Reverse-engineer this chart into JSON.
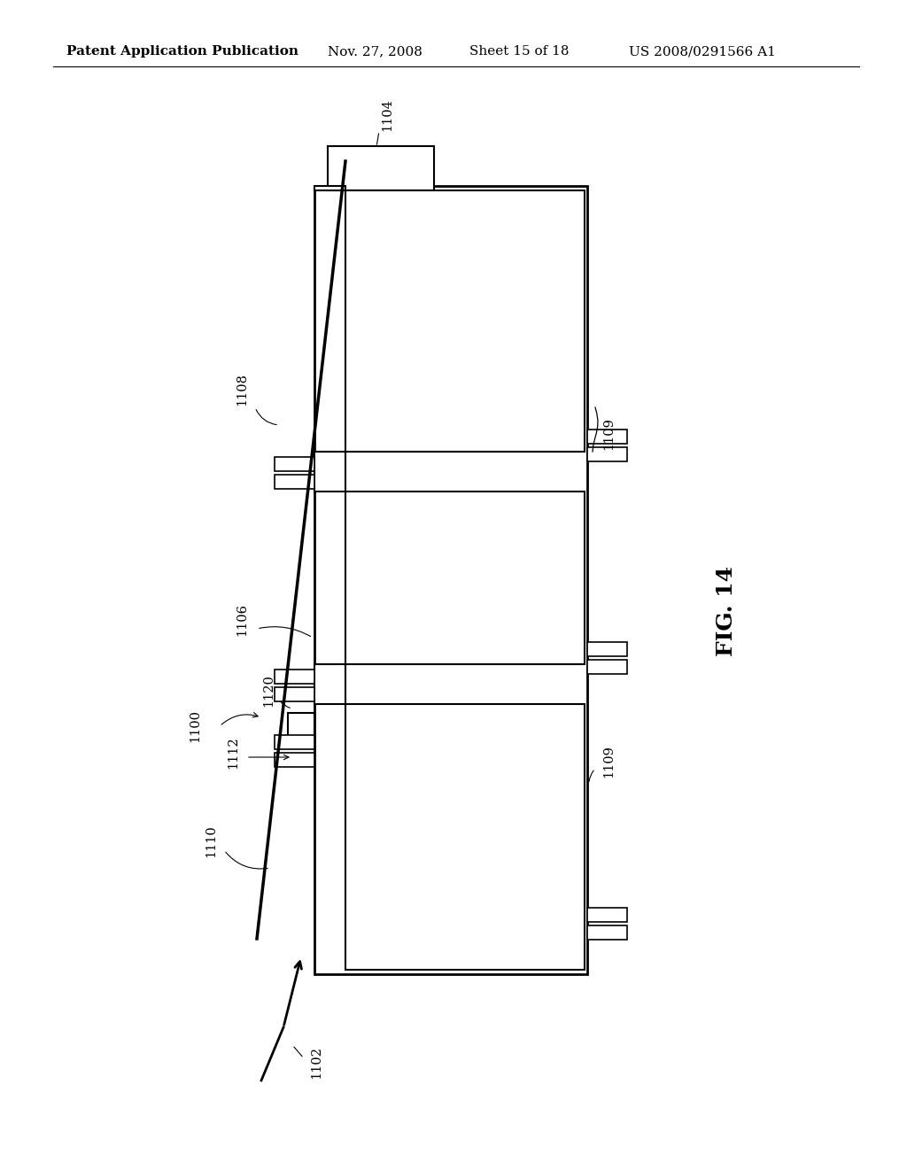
{
  "title": "Patent Application Publication",
  "date": "Nov. 27, 2008",
  "sheet": "Sheet 15 of 18",
  "patent_no": "US 2008/0291566 A1",
  "fig_label": "FIG. 14",
  "background_color": "#ffffff",
  "line_color": "#000000",
  "header_fontsize": 11,
  "fig_label_fontsize": 18,
  "label_fontsize": 10.5
}
